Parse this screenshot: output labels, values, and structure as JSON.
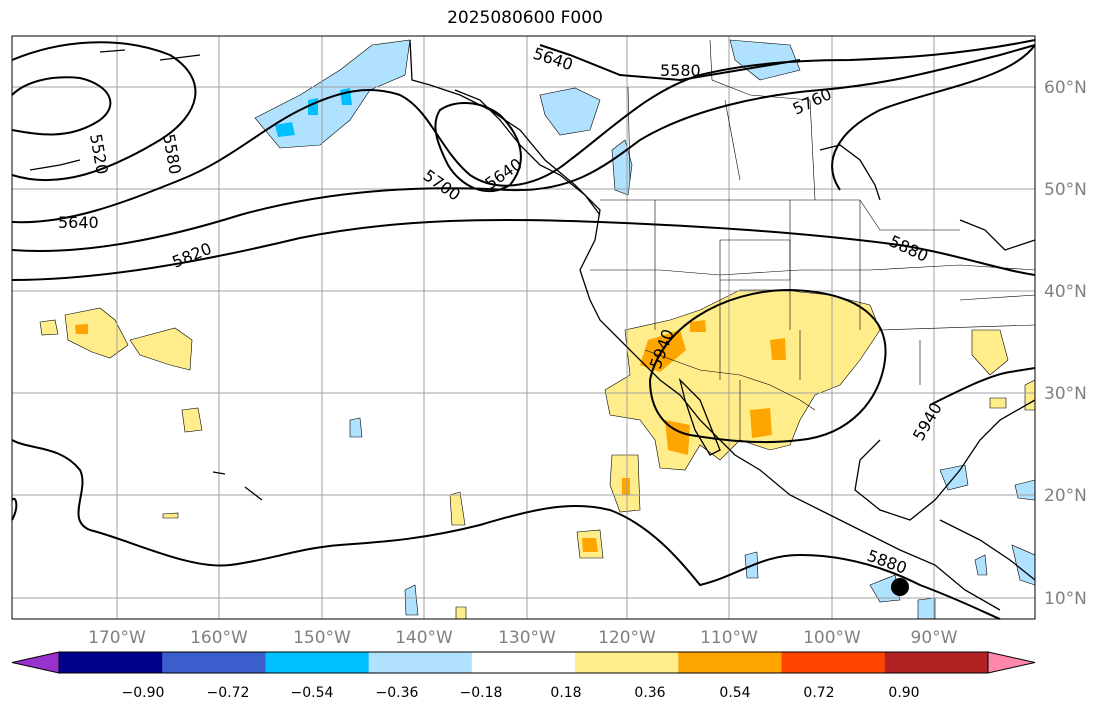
{
  "title": "2025080600 F000",
  "lat_labels": [
    "60°N",
    "50°N",
    "40°N",
    "30°N",
    "20°N",
    "10°N"
  ],
  "lon_labels": [
    "170°W",
    "160°W",
    "150°W",
    "140°W",
    "130°W",
    "120°W",
    "110°W",
    "100°W",
    "90°W"
  ],
  "contour_labels": [
    "5640",
    "5580",
    "5760",
    "5520",
    "5580",
    "5700",
    "5640",
    "5640",
    "5820",
    "5880",
    "5940",
    "5940",
    "5880"
  ],
  "colorbar": {
    "ticks": [
      "−0.90",
      "−0.72",
      "−0.54",
      "−0.36",
      "−0.18",
      "0.18",
      "0.36",
      "0.54",
      "0.72",
      "0.90"
    ],
    "colors": [
      "#9932CC",
      "#00008B",
      "#3A5FCD",
      "#00BFFF",
      "#B0E2FF",
      "#FFFFFF",
      "#FFEC8B",
      "#FFA500",
      "#FF4500",
      "#B22222",
      "#FF88AA"
    ]
  },
  "marker": "storm-center-dot"
}
